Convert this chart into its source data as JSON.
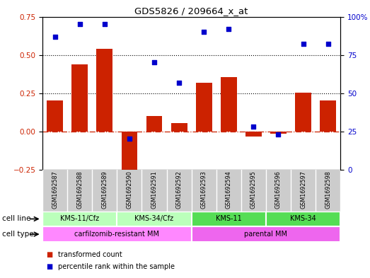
{
  "title": "GDS5826 / 209664_x_at",
  "samples": [
    "GSM1692587",
    "GSM1692588",
    "GSM1692589",
    "GSM1692590",
    "GSM1692591",
    "GSM1692592",
    "GSM1692593",
    "GSM1692594",
    "GSM1692595",
    "GSM1692596",
    "GSM1692597",
    "GSM1692598"
  ],
  "transformed_count": [
    0.2,
    0.44,
    0.54,
    -0.28,
    0.1,
    0.055,
    0.32,
    0.355,
    -0.035,
    -0.015,
    0.255,
    0.2
  ],
  "percentile_rank": [
    87,
    95,
    95,
    20,
    70,
    57,
    90,
    92,
    28,
    23,
    82,
    82
  ],
  "ylim_left": [
    -0.25,
    0.75
  ],
  "ylim_right": [
    0,
    100
  ],
  "yticks_left": [
    -0.25,
    0,
    0.25,
    0.5,
    0.75
  ],
  "yticks_right": [
    0,
    25,
    50,
    75,
    100
  ],
  "hlines": [
    0.25,
    0.5
  ],
  "bar_color": "#CC2200",
  "scatter_color": "#0000CC",
  "zero_line_color": "#CC2200",
  "cell_line_groups": [
    {
      "label": "KMS-11/Cfz",
      "start": 0,
      "end": 3,
      "color": "#AAFFAA"
    },
    {
      "label": "KMS-34/Cfz",
      "start": 3,
      "end": 6,
      "color": "#AAFFAA"
    },
    {
      "label": "KMS-11",
      "start": 6,
      "end": 9,
      "color": "#66EE66"
    },
    {
      "label": "KMS-34",
      "start": 9,
      "end": 12,
      "color": "#66EE66"
    }
  ],
  "cell_type_groups": [
    {
      "label": "carfilzomib-resistant MM",
      "start": 0,
      "end": 6,
      "color": "#FF88FF"
    },
    {
      "label": "parental MM",
      "start": 6,
      "end": 12,
      "color": "#FF88FF"
    }
  ],
  "legend_items": [
    {
      "label": "transformed count",
      "color": "#CC2200"
    },
    {
      "label": "percentile rank within the sample",
      "color": "#0000CC"
    }
  ],
  "cell_line_label": "cell line",
  "cell_type_label": "cell type",
  "bg_color_sample": "#CCCCCC",
  "bg_color_cell_line_light": "#BBFFBB",
  "bg_color_cell_line_dark": "#55DD55",
  "bg_color_cell_type": "#FF88FF"
}
